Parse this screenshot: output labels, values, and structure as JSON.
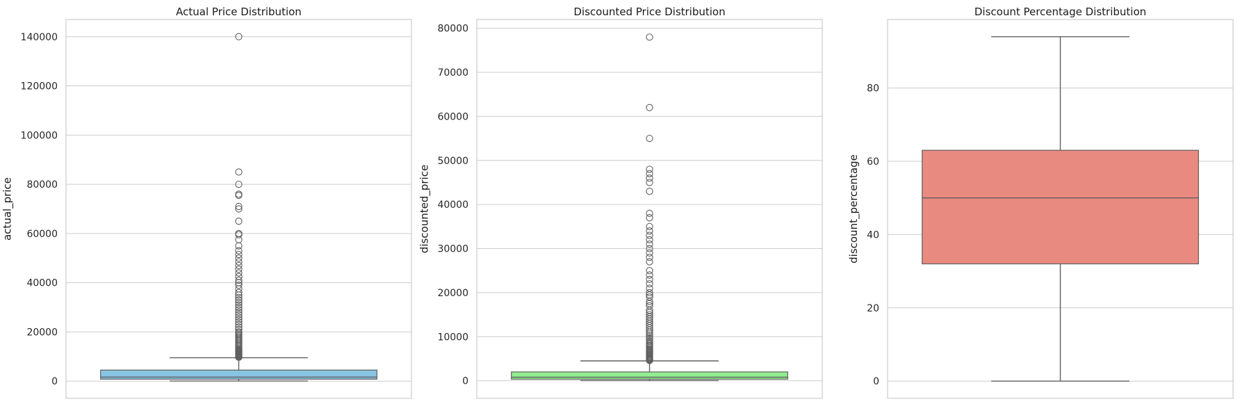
{
  "chart_data": [
    {
      "type": "box",
      "title": "Actual Price Distribution",
      "ylabel": "actual_price",
      "ylim": [
        -7000,
        147000
      ],
      "yticks": [
        0,
        20000,
        40000,
        60000,
        80000,
        100000,
        120000,
        140000
      ],
      "color": "#87c6e3",
      "box": {
        "whisker_low": 39,
        "q1": 800,
        "median": 1650,
        "q3": 4500,
        "whisker_high": 9500
      },
      "outliers": [
        9700,
        9900,
        10000,
        10200,
        10500,
        10800,
        11000,
        11200,
        11500,
        11800,
        12000,
        12200,
        12500,
        12800,
        13000,
        13500,
        14000,
        14500,
        15000,
        15500,
        16000,
        16500,
        17000,
        17500,
        18000,
        18500,
        19000,
        19500,
        20000,
        21000,
        22000,
        23000,
        24000,
        25000,
        26000,
        27000,
        28000,
        29000,
        30000,
        31000,
        32000,
        33000,
        34000,
        35000,
        36000,
        37500,
        39000,
        40000,
        41000,
        42500,
        44000,
        45500,
        47000,
        48500,
        50000,
        51500,
        53000,
        55000,
        57500,
        59500,
        60000,
        65000,
        70000,
        71000,
        75500,
        76000,
        80000,
        85000,
        140000
      ]
    },
    {
      "type": "box",
      "title": "Discounted Price Distribution",
      "ylabel": "discounted_price",
      "ylim": [
        -4000,
        82000
      ],
      "yticks": [
        0,
        10000,
        20000,
        30000,
        40000,
        50000,
        60000,
        70000,
        80000
      ],
      "color": "#90ee90",
      "box": {
        "whisker_low": 39,
        "q1": 350,
        "median": 800,
        "q3": 2000,
        "whisker_high": 4500
      },
      "outliers": [
        4600,
        4700,
        4800,
        4900,
        5000,
        5200,
        5400,
        5600,
        5800,
        6000,
        6200,
        6400,
        6600,
        6800,
        7000,
        7200,
        7500,
        7800,
        8000,
        8300,
        8600,
        9000,
        9400,
        9800,
        10200,
        10600,
        11000,
        11500,
        12000,
        12500,
        13000,
        13500,
        14000,
        14500,
        15000,
        15500,
        16000,
        17000,
        17500,
        18000,
        19000,
        19500,
        20000,
        21000,
        22000,
        23000,
        24000,
        25000,
        27000,
        28000,
        29000,
        30000,
        31000,
        32000,
        33000,
        34000,
        35000,
        37000,
        38000,
        43000,
        45000,
        46000,
        47000,
        48000,
        55000,
        62000,
        78000
      ]
    },
    {
      "type": "box",
      "title": "Discount Percentage Distribution",
      "ylabel": "discount_percentage",
      "ylim": [
        -4.7,
        98.7
      ],
      "yticks": [
        0,
        20,
        40,
        60,
        80
      ],
      "color": "#e98a80",
      "box": {
        "whisker_low": 0,
        "q1": 32,
        "median": 50,
        "q3": 63,
        "whisker_high": 94
      },
      "outliers": []
    }
  ]
}
